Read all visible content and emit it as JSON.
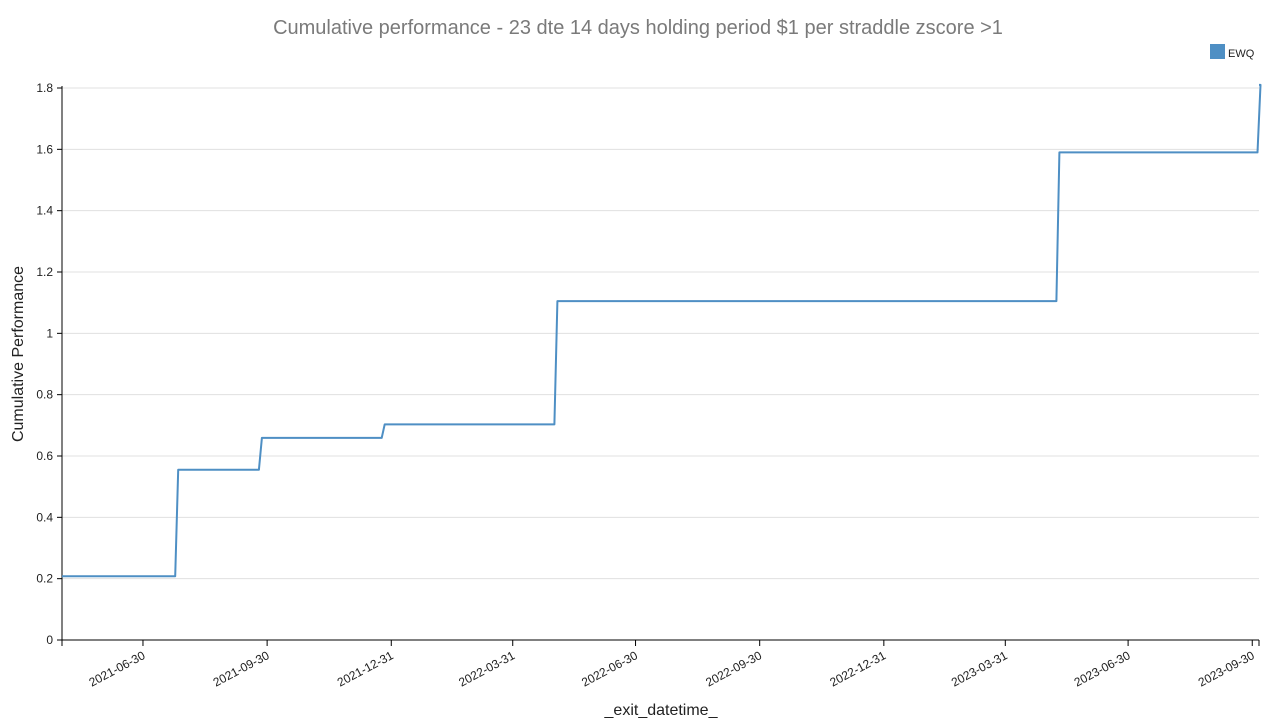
{
  "chart_data": {
    "type": "line",
    "title": "Cumulative performance - 23 dte 14 days holding period $1 per straddle zscore >1",
    "xlabel": "_exit_datetime_",
    "ylabel": "Cumulative Performance",
    "x_range": [
      "2021-05-01",
      "2023-10-05"
    ],
    "ylim": [
      0,
      1.8
    ],
    "y_ticks": [
      0,
      0.2,
      0.4,
      0.6,
      0.8,
      1,
      1.2,
      1.4,
      1.6,
      1.8
    ],
    "y_tick_labels": [
      "0",
      "0.2",
      "0.4",
      "0.6",
      "0.8",
      "1",
      "1.2",
      "1.4",
      "1.6",
      "1.8"
    ],
    "x_tick_labels": [
      "2021-06-30",
      "2021-09-30",
      "2021-12-31",
      "2022-03-31",
      "2022-06-30",
      "2022-09-30",
      "2022-12-31",
      "2023-03-31",
      "2023-06-30",
      "2023-09-30"
    ],
    "grid": true,
    "legend_position": "top-right",
    "series": [
      {
        "name": "EWQ",
        "color": "#4e8fc4",
        "step": true,
        "points": [
          {
            "x": "2021-05-01",
            "y": 0.208
          },
          {
            "x": "2021-07-25",
            "y": 0.555
          },
          {
            "x": "2021-09-25",
            "y": 0.659
          },
          {
            "x": "2021-12-25",
            "y": 0.703
          },
          {
            "x": "2022-05-02",
            "y": 1.105
          },
          {
            "x": "2023-05-09",
            "y": 1.59
          },
          {
            "x": "2023-10-05",
            "y": 1.81
          }
        ]
      }
    ]
  }
}
